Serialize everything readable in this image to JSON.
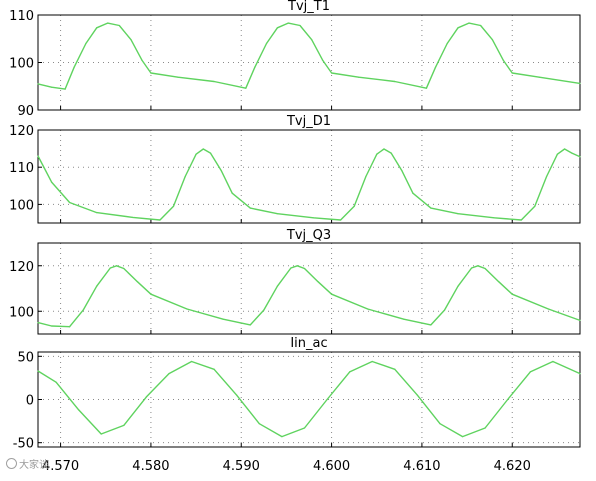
{
  "colors": {
    "trace": "#5fd35f",
    "frame": "#000000",
    "grid": "#8a8a8a",
    "background": "#ffffff"
  },
  "watermark": "大家谈",
  "x_axis": {
    "range": [
      4.5675,
      4.6275
    ],
    "ticks": [
      4.57,
      4.58,
      4.59,
      4.6,
      4.61,
      4.62
    ],
    "tick_labels": [
      "4.570",
      "4.580",
      "4.590",
      "4.600",
      "4.610",
      "4.620"
    ]
  },
  "chart_data": [
    {
      "type": "line",
      "title": "Tvj_T1",
      "ylim": [
        90,
        110
      ],
      "yticks": [
        90,
        100,
        110
      ],
      "ytick_labels": [
        "90",
        "100",
        "110"
      ],
      "grid": true,
      "series": [
        {
          "x": [
            4.5675,
            4.569,
            4.5705,
            4.5715,
            4.5728,
            4.574,
            4.5752,
            4.5765,
            4.5778,
            4.579,
            4.58,
            4.583,
            4.587,
            4.5905,
            4.5915,
            4.5928,
            4.594,
            4.5952,
            4.5965,
            4.5978,
            4.599,
            4.6,
            4.603,
            4.607,
            4.6105,
            4.6115,
            4.6128,
            4.614,
            4.6152,
            4.6165,
            4.6178,
            4.619,
            4.62,
            4.623,
            4.6275
          ],
          "values": [
            95.5,
            94.8,
            94.4,
            99.0,
            104.0,
            107.3,
            108.3,
            107.8,
            104.8,
            100.5,
            97.8,
            96.9,
            96.0,
            94.6,
            99.0,
            104.0,
            107.3,
            108.3,
            107.8,
            104.8,
            100.5,
            97.8,
            96.9,
            96.0,
            94.6,
            99.0,
            104.0,
            107.3,
            108.3,
            107.8,
            104.8,
            100.5,
            97.8,
            96.9,
            95.6
          ]
        }
      ]
    },
    {
      "type": "line",
      "title": "Tvj_D1",
      "ylim": [
        95,
        120
      ],
      "yticks": [
        100,
        110,
        120
      ],
      "ytick_labels": [
        "100",
        "110",
        "120"
      ],
      "grid": true,
      "series": [
        {
          "x": [
            4.5675,
            4.569,
            4.571,
            4.574,
            4.578,
            4.581,
            4.5825,
            4.5838,
            4.585,
            4.5858,
            4.5866,
            4.5878,
            4.589,
            4.591,
            4.594,
            4.598,
            4.601,
            4.6025,
            4.6038,
            4.605,
            4.6058,
            4.6066,
            4.6078,
            4.609,
            4.611,
            4.614,
            4.618,
            4.621,
            4.6225,
            4.6238,
            4.625,
            4.6258,
            4.6266,
            4.6275
          ],
          "values": [
            113.0,
            106.0,
            100.5,
            97.8,
            96.5,
            95.8,
            99.5,
            107.5,
            113.5,
            114.9,
            113.8,
            109.0,
            103.0,
            99.0,
            97.5,
            96.4,
            95.8,
            99.5,
            107.5,
            113.5,
            114.9,
            113.8,
            109.0,
            103.0,
            99.0,
            97.5,
            96.4,
            95.8,
            99.5,
            107.5,
            113.5,
            114.9,
            113.8,
            112.8
          ]
        }
      ]
    },
    {
      "type": "line",
      "title": "Tvj_Q3",
      "ylim": [
        90,
        130
      ],
      "yticks": [
        100,
        120
      ],
      "ytick_labels": [
        "100",
        "120"
      ],
      "grid": true,
      "series": [
        {
          "x": [
            4.5675,
            4.569,
            4.571,
            4.5725,
            4.574,
            4.5755,
            4.5762,
            4.577,
            4.5785,
            4.58,
            4.584,
            4.588,
            4.591,
            4.5925,
            4.594,
            4.5955,
            4.5962,
            4.597,
            4.5985,
            4.6,
            4.604,
            4.608,
            4.611,
            4.6125,
            4.614,
            4.6155,
            4.6162,
            4.617,
            4.6185,
            4.62,
            4.624,
            4.6275
          ],
          "values": [
            95.0,
            93.5,
            93.2,
            100.5,
            111.0,
            119.0,
            120.0,
            118.8,
            113.0,
            107.5,
            101.0,
            96.5,
            94.0,
            100.5,
            111.0,
            119.0,
            120.0,
            118.8,
            113.0,
            107.5,
            101.0,
            96.5,
            94.0,
            100.5,
            111.0,
            119.0,
            120.0,
            118.8,
            113.0,
            107.5,
            101.0,
            96.0
          ]
        }
      ]
    },
    {
      "type": "line",
      "title": "Iin_ac",
      "ylim": [
        -55,
        55
      ],
      "yticks": [
        -50,
        0,
        50
      ],
      "ytick_labels": [
        "-50",
        "0",
        "50"
      ],
      "grid": true,
      "series": [
        {
          "x": [
            4.5675,
            4.5695,
            4.572,
            4.5745,
            4.577,
            4.5795,
            4.582,
            4.5845,
            4.587,
            4.5895,
            4.592,
            4.5945,
            4.597,
            4.5995,
            4.602,
            4.6045,
            4.607,
            4.6095,
            4.612,
            4.6145,
            4.617,
            4.6195,
            4.622,
            4.6245,
            4.6275
          ],
          "values": [
            33,
            20,
            -12,
            -40,
            -30,
            3,
            30,
            44,
            35,
            5,
            -28,
            -43,
            -33,
            0,
            32,
            44,
            35,
            5,
            -28,
            -43,
            -33,
            0,
            32,
            44,
            30
          ]
        }
      ]
    }
  ]
}
